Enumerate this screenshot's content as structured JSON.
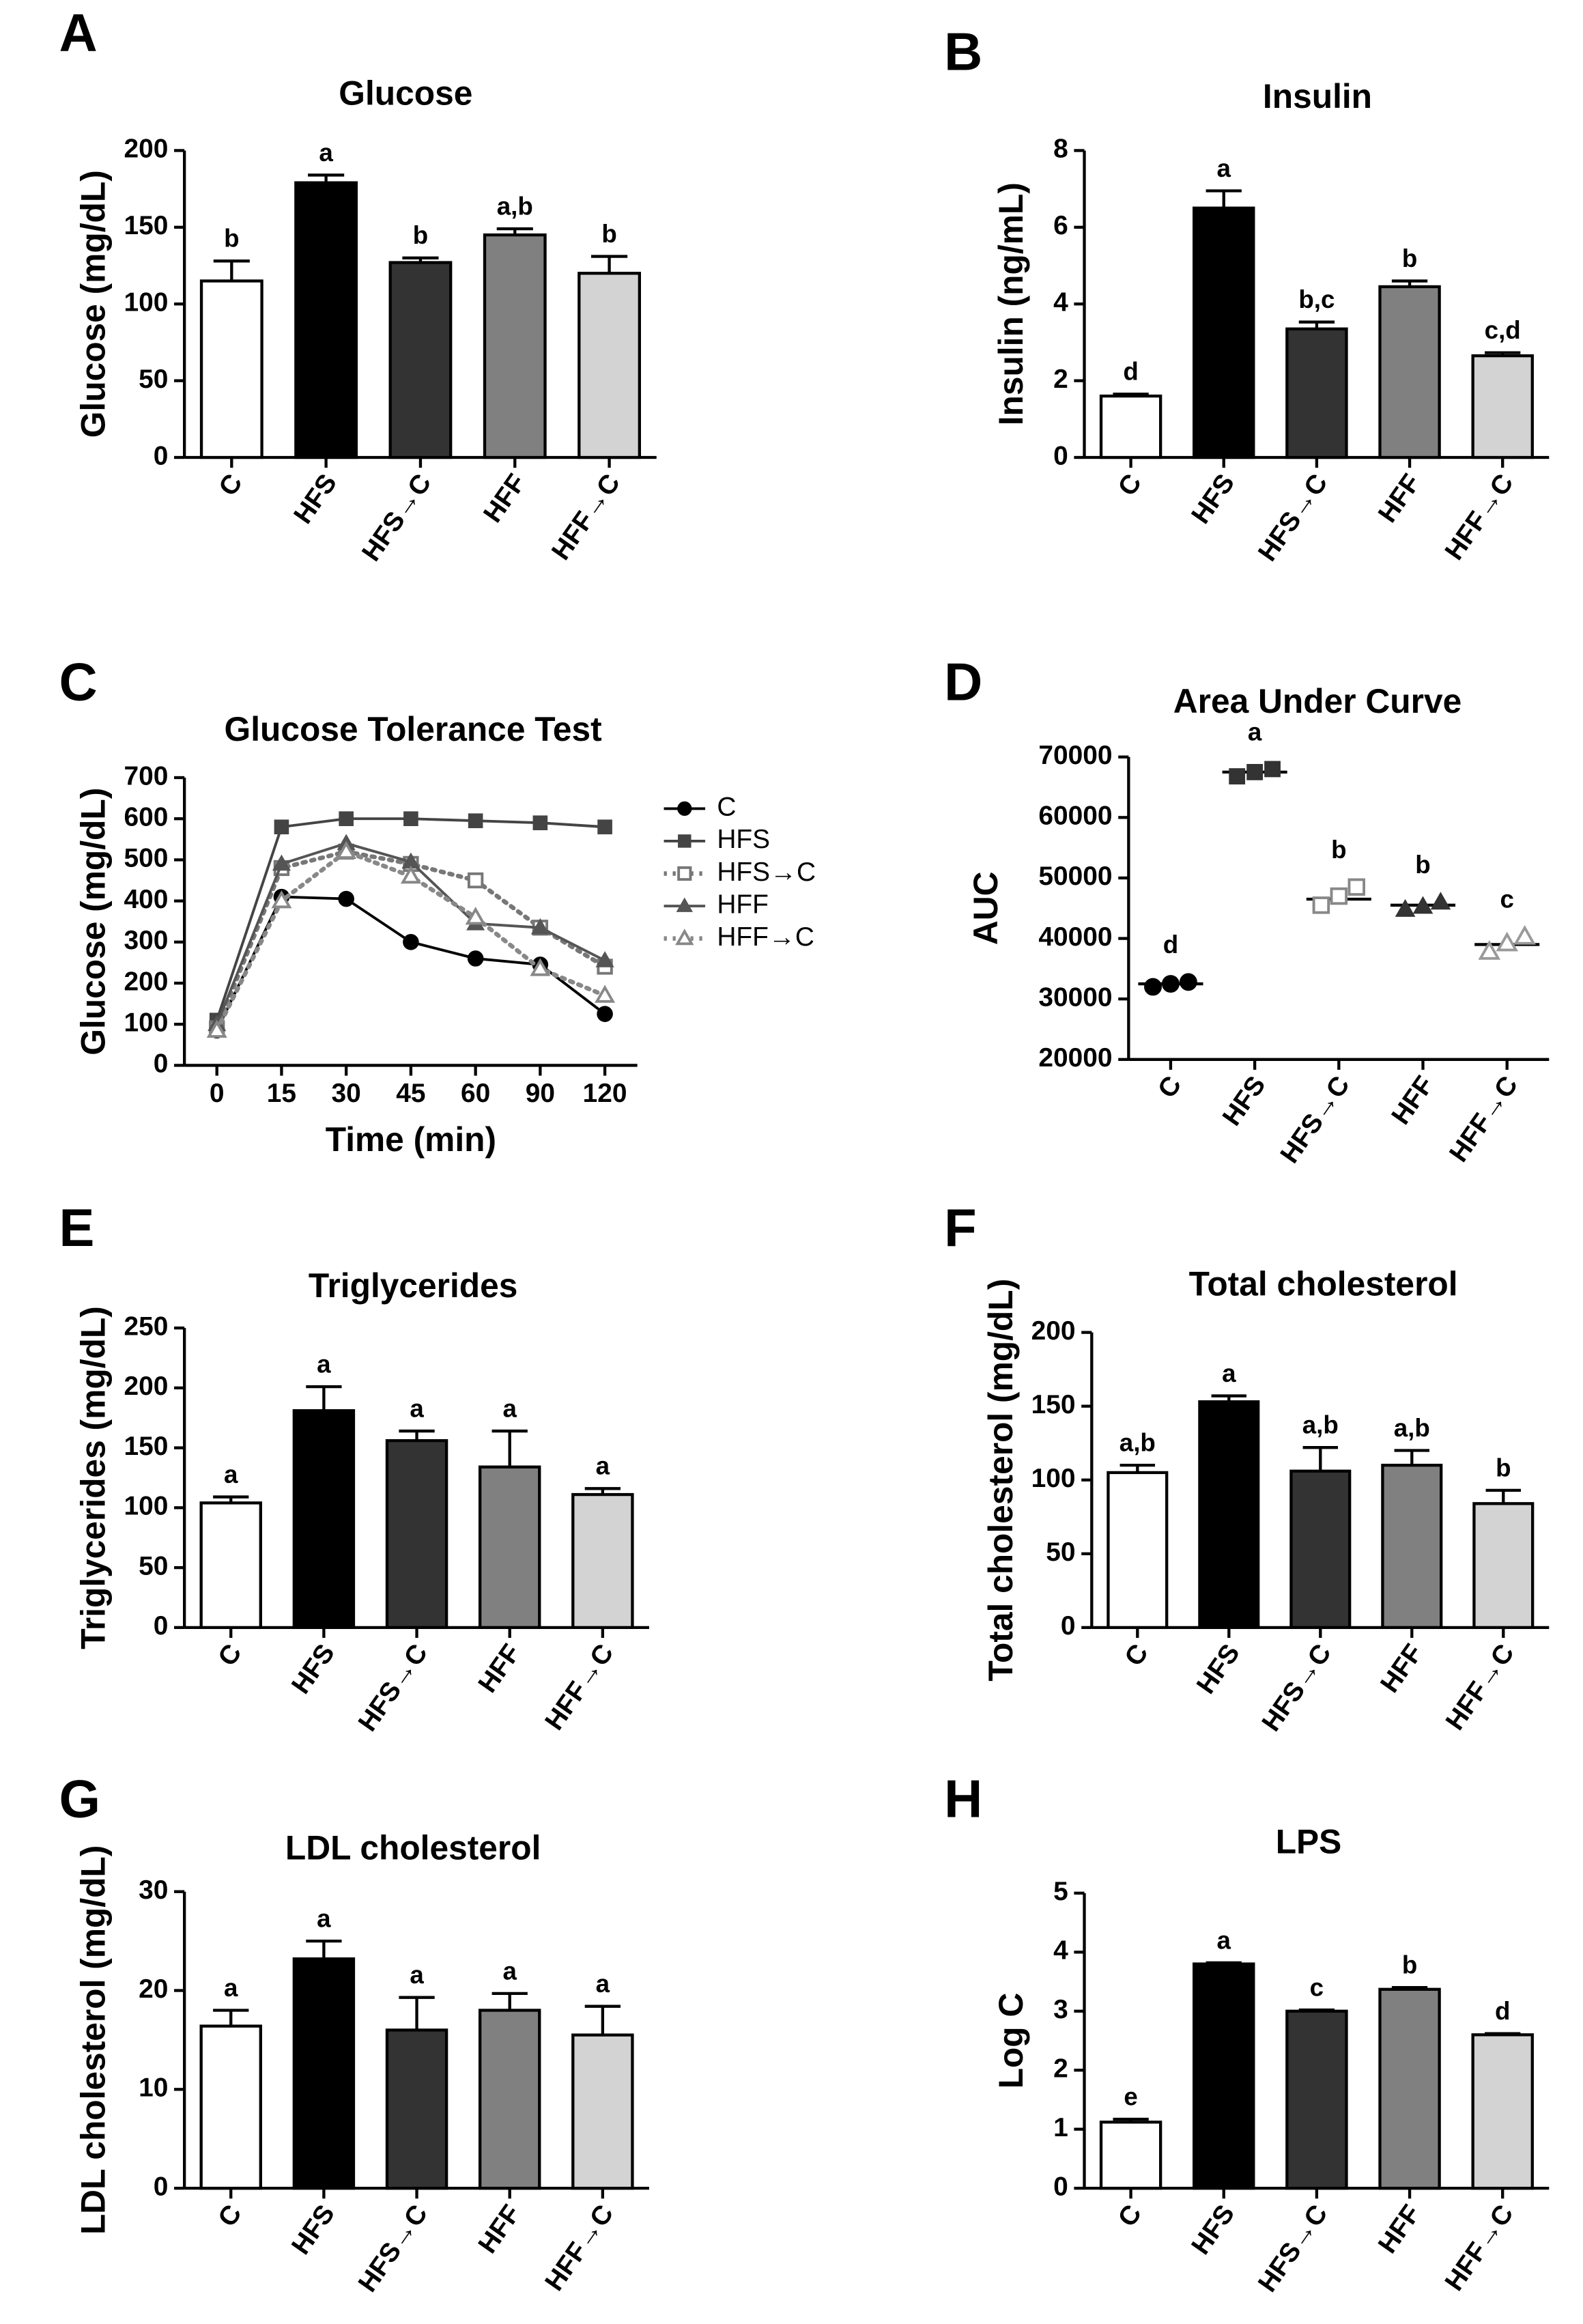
{
  "chart_data": [
    {
      "type": "bar",
      "panel": "A",
      "title": "Glucose",
      "ylabel": "Glucose (mg/dL)",
      "categories": [
        "C",
        "HFS",
        "HFS→C",
        "HFF",
        "HFF→C"
      ],
      "values": [
        115,
        179,
        127,
        145,
        120
      ],
      "errors": [
        13,
        5,
        3,
        4,
        11
      ],
      "letters": [
        "b",
        "a",
        "b",
        "a,b",
        "b"
      ],
      "colors": [
        "#ffffff",
        "#000000",
        "#333333",
        "#808080",
        "#d3d3d3"
      ],
      "ylim": [
        0,
        200
      ],
      "yticks": [
        0,
        50,
        100,
        150,
        200
      ]
    },
    {
      "type": "bar",
      "panel": "B",
      "title": "Insulin",
      "ylabel": "Insulin (ng/mL)",
      "categories": [
        "C",
        "HFS",
        "HFS→C",
        "HFF",
        "HFF→C"
      ],
      "values": [
        1.6,
        6.5,
        3.35,
        4.45,
        2.65
      ],
      "errors": [
        0.05,
        0.45,
        0.18,
        0.15,
        0.08
      ],
      "letters": [
        "d",
        "a",
        "b,c",
        "b",
        "c,d"
      ],
      "colors": [
        "#ffffff",
        "#000000",
        "#333333",
        "#808080",
        "#d3d3d3"
      ],
      "ylim": [
        0,
        8
      ],
      "yticks": [
        0,
        2,
        4,
        6,
        8
      ]
    },
    {
      "type": "line",
      "panel": "C",
      "title": "Glucose Tolerance Test",
      "ylabel": "Glucose (mg/dL)",
      "xlabel": "Time (min)",
      "categories": [
        "0",
        "15",
        "30",
        "45",
        "60",
        "90",
        "120"
      ],
      "ylim": [
        0,
        700
      ],
      "yticks": [
        0,
        100,
        200,
        300,
        400,
        500,
        600,
        700
      ],
      "series": [
        {
          "name": "C",
          "color": "#000000",
          "marker": "circle",
          "dashed": false,
          "values": [
            85,
            410,
            405,
            300,
            260,
            245,
            125
          ]
        },
        {
          "name": "HFS",
          "color": "#444444",
          "marker": "square",
          "dashed": false,
          "values": [
            110,
            580,
            600,
            600,
            595,
            590,
            580
          ]
        },
        {
          "name": "HFS→C",
          "color": "#777777",
          "marker": "square-open",
          "dashed": true,
          "values": [
            90,
            480,
            520,
            490,
            450,
            335,
            240
          ]
        },
        {
          "name": "HFF",
          "color": "#555555",
          "marker": "triangle",
          "dashed": false,
          "values": [
            100,
            490,
            540,
            495,
            345,
            335,
            255
          ]
        },
        {
          "name": "HFF→C",
          "color": "#888888",
          "marker": "triangle-open",
          "dashed": true,
          "values": [
            85,
            400,
            520,
            460,
            360,
            235,
            170
          ]
        }
      ]
    },
    {
      "type": "dot",
      "panel": "D",
      "title": "Area Under Curve",
      "ylabel": "AUC",
      "categories": [
        "C",
        "HFS",
        "HFS→C",
        "HFF",
        "HFF→C"
      ],
      "values": [
        32500,
        67500,
        46500,
        45500,
        39000
      ],
      "points": [
        [
          32000,
          32500,
          32800
        ],
        [
          66800,
          67500,
          68000
        ],
        [
          45500,
          47000,
          48500
        ],
        [
          44800,
          45300,
          46000
        ],
        [
          37800,
          39200,
          40300
        ]
      ],
      "letters": [
        "d",
        "a",
        "b",
        "b",
        "c"
      ],
      "markers": [
        "circle",
        "square",
        "square-open",
        "triangle",
        "triangle-open"
      ],
      "colors": [
        "#000000",
        "#333333",
        "#888888",
        "#333333",
        "#999999"
      ],
      "ylim": [
        20000,
        70000
      ],
      "yticks": [
        20000,
        30000,
        40000,
        50000,
        60000,
        70000
      ]
    },
    {
      "type": "bar",
      "panel": "E",
      "title": "Triglycerides",
      "ylabel": "Triglycerides (mg/dL)",
      "categories": [
        "C",
        "HFS",
        "HFS→C",
        "HFF",
        "HFF→C"
      ],
      "values": [
        104,
        181,
        156,
        134,
        111
      ],
      "errors": [
        5,
        20,
        8,
        30,
        5
      ],
      "letters": [
        "a",
        "a",
        "a",
        "a",
        "a"
      ],
      "colors": [
        "#ffffff",
        "#000000",
        "#333333",
        "#808080",
        "#d3d3d3"
      ],
      "ylim": [
        0,
        250
      ],
      "yticks": [
        0,
        50,
        100,
        150,
        200,
        250
      ]
    },
    {
      "type": "bar",
      "panel": "F",
      "title": "Total cholesterol",
      "ylabel": "Total cholesterol (mg/dL)",
      "categories": [
        "C",
        "HFS",
        "HFS→C",
        "HFF",
        "HFF→C"
      ],
      "values": [
        105,
        153,
        106,
        110,
        84
      ],
      "errors": [
        5,
        4,
        16,
        10,
        9
      ],
      "letters": [
        "a,b",
        "a",
        "a,b",
        "a,b",
        "b"
      ],
      "colors": [
        "#ffffff",
        "#000000",
        "#333333",
        "#808080",
        "#d3d3d3"
      ],
      "ylim": [
        0,
        200
      ],
      "yticks": [
        0,
        50,
        100,
        150,
        200
      ]
    },
    {
      "type": "bar",
      "panel": "G",
      "title": "LDL cholesterol",
      "ylabel": "LDL cholesterol (mg/dL)",
      "categories": [
        "C",
        "HFS",
        "HFS→C",
        "HFF",
        "HFF→C"
      ],
      "values": [
        16.4,
        23.2,
        16,
        18,
        15.5
      ],
      "errors": [
        1.6,
        1.8,
        3.3,
        1.7,
        2.9
      ],
      "letters": [
        "a",
        "a",
        "a",
        "a",
        "a"
      ],
      "colors": [
        "#ffffff",
        "#000000",
        "#333333",
        "#808080",
        "#d3d3d3"
      ],
      "ylim": [
        0,
        30
      ],
      "yticks": [
        0,
        10,
        20,
        30
      ]
    },
    {
      "type": "bar",
      "panel": "H",
      "title": "LPS",
      "ylabel": "Log C",
      "categories": [
        "C",
        "HFS",
        "HFS→C",
        "HFF",
        "HFF→C"
      ],
      "values": [
        1.12,
        3.8,
        3.0,
        3.37,
        2.6
      ],
      "errors": [
        0.05,
        0.02,
        0.02,
        0.03,
        0.02
      ],
      "letters": [
        "e",
        "a",
        "c",
        "b",
        "d"
      ],
      "colors": [
        "#ffffff",
        "#000000",
        "#333333",
        "#808080",
        "#d3d3d3"
      ],
      "ylim": [
        0,
        5
      ],
      "yticks": [
        0,
        1,
        2,
        3,
        4,
        5
      ]
    }
  ]
}
